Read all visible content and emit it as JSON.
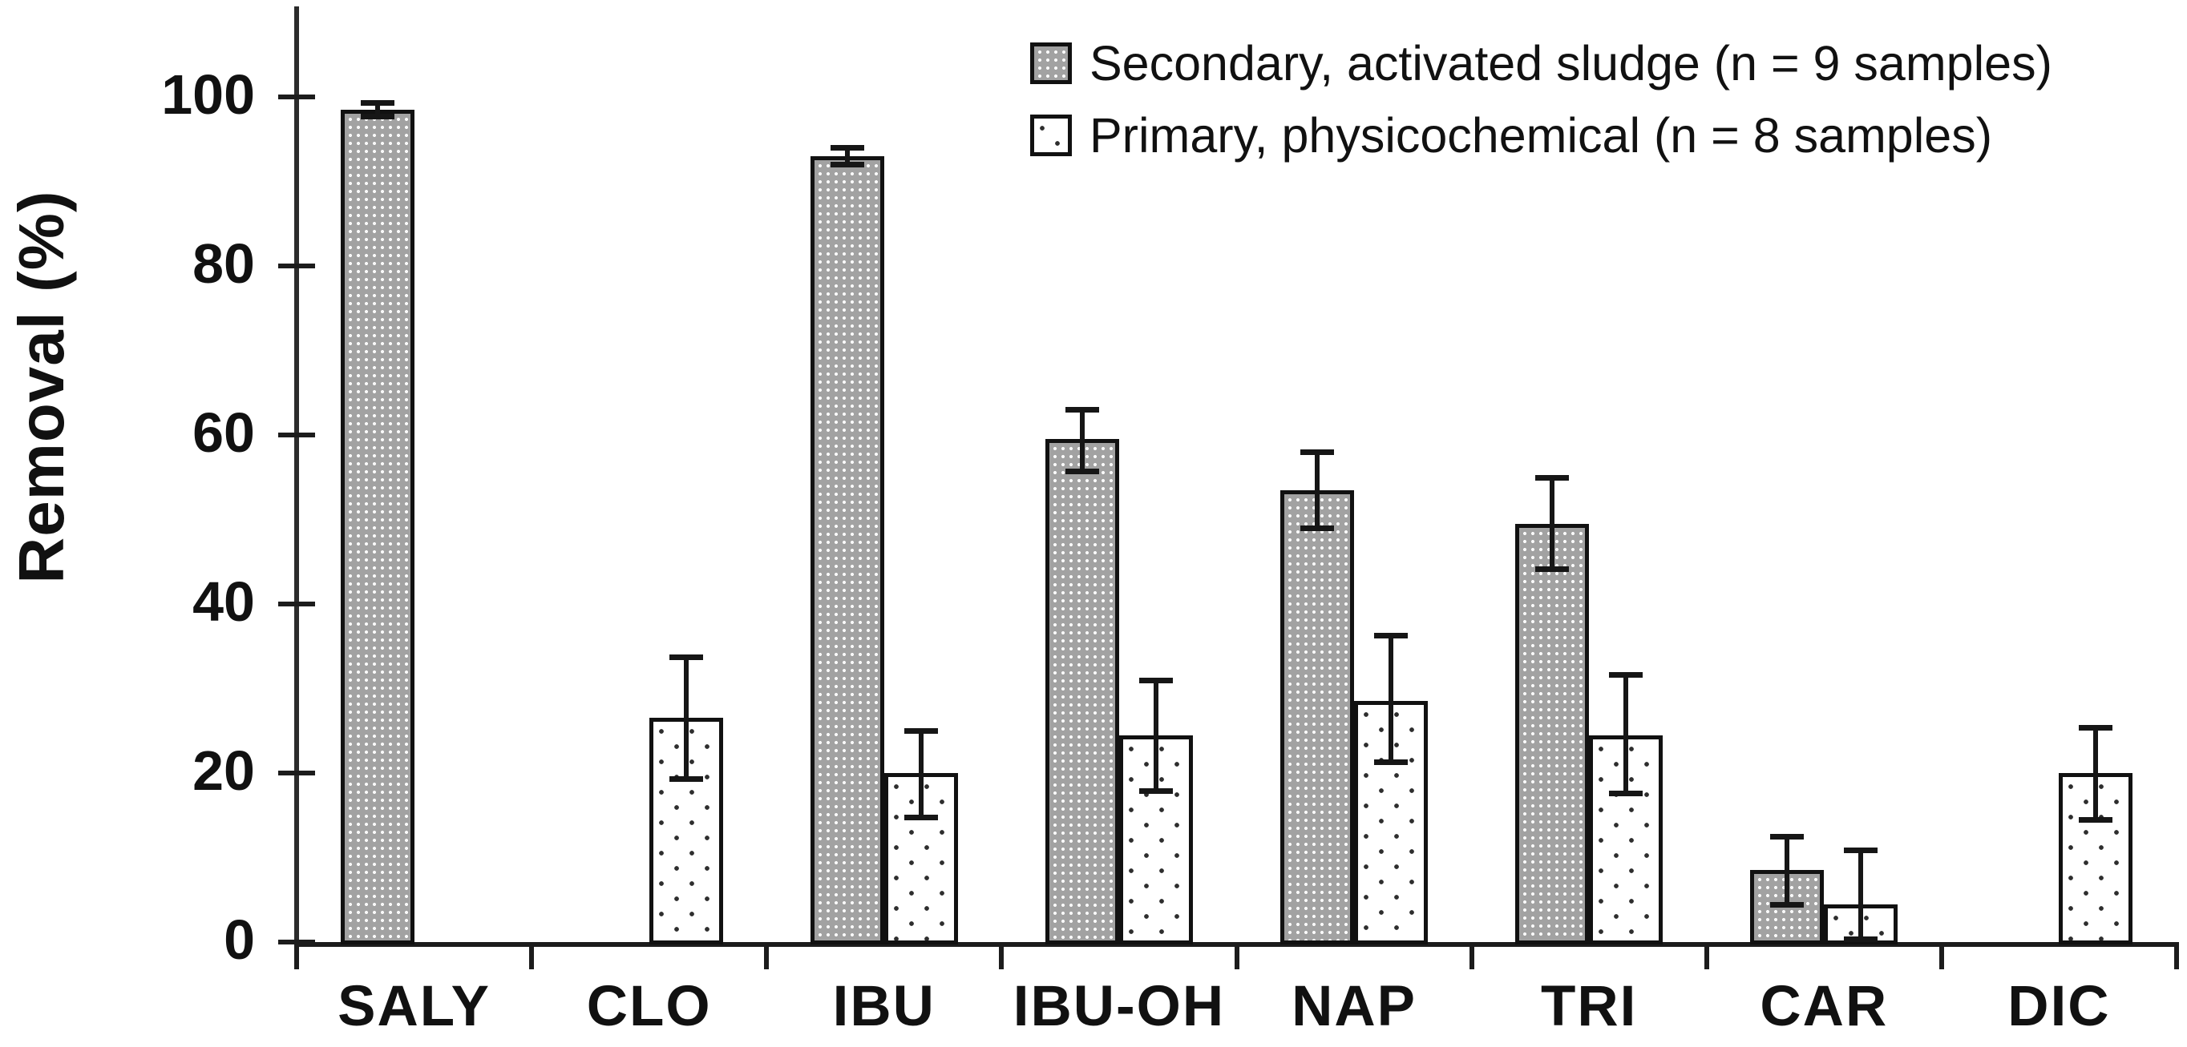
{
  "chart_data": {
    "type": "bar",
    "title": "",
    "ylabel": "Removal (%)",
    "xlabel": "",
    "ylim": [
      0,
      110
    ],
    "yticks": [
      0,
      20,
      40,
      60,
      80,
      100
    ],
    "grid": false,
    "legend_position": "top-right",
    "categories": [
      "SALY",
      "CLO",
      "IBU",
      "IBU-OH",
      "NAP",
      "TRI",
      "CAR",
      "DIC"
    ],
    "series": [
      {
        "name": "Secondary, activated sludge (n = 9 samples)",
        "swatch": "gray-halftone",
        "values": [
          98.5,
          null,
          93,
          59.5,
          53.5,
          49.5,
          8.5,
          null
        ],
        "err_up": [
          0.8,
          null,
          1.0,
          3.5,
          4.5,
          5.5,
          4.0,
          null
        ],
        "err_down": [
          0.8,
          null,
          1.0,
          3.8,
          4.5,
          5.3,
          4.0,
          null
        ]
      },
      {
        "name": "Primary, physicochemical (n = 8 samples)",
        "swatch": "white-dotted",
        "values": [
          null,
          26.5,
          20,
          24.5,
          28.5,
          24.5,
          4.5,
          20
        ],
        "err_up": [
          null,
          7.2,
          5.0,
          6.5,
          7.8,
          7.2,
          6.4,
          5.4
        ],
        "err_down": [
          null,
          7.2,
          5.2,
          6.6,
          7.2,
          6.9,
          4.3,
          5.5
        ]
      }
    ]
  }
}
